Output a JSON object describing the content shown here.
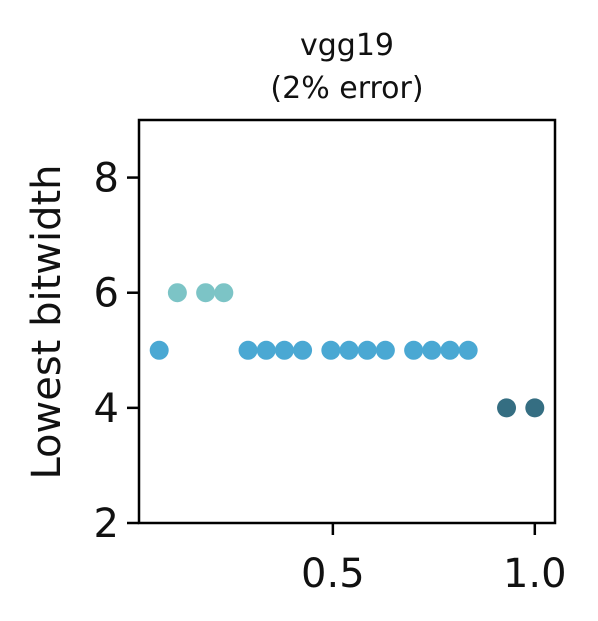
{
  "chart_data": {
    "type": "scatter",
    "title": "vgg19",
    "subtitle": "(2% error)",
    "xlabel": "",
    "ylabel": "Lowest bitwidth",
    "xlim": [
      0.02,
      1.05
    ],
    "ylim": [
      2,
      9
    ],
    "xticks": [
      0.5,
      1.0
    ],
    "xtick_labels": [
      "0.5",
      "1.0"
    ],
    "yticks": [
      2,
      4,
      6,
      8
    ],
    "ytick_labels": [
      "2",
      "4",
      "6",
      "8"
    ],
    "grid": false,
    "points": [
      {
        "x": 0.07,
        "y": 5,
        "color": "#4aa8d3"
      },
      {
        "x": 0.115,
        "y": 6,
        "color": "#7cc4c6"
      },
      {
        "x": 0.185,
        "y": 6,
        "color": "#7cc4c6"
      },
      {
        "x": 0.23,
        "y": 6,
        "color": "#7cc4c6"
      },
      {
        "x": 0.29,
        "y": 5,
        "color": "#4aa8d3"
      },
      {
        "x": 0.335,
        "y": 5,
        "color": "#4aa8d3"
      },
      {
        "x": 0.38,
        "y": 5,
        "color": "#4aa8d3"
      },
      {
        "x": 0.425,
        "y": 5,
        "color": "#4aa8d3"
      },
      {
        "x": 0.495,
        "y": 5,
        "color": "#4aa8d3"
      },
      {
        "x": 0.54,
        "y": 5,
        "color": "#4aa8d3"
      },
      {
        "x": 0.585,
        "y": 5,
        "color": "#4aa8d3"
      },
      {
        "x": 0.63,
        "y": 5,
        "color": "#4aa8d3"
      },
      {
        "x": 0.7,
        "y": 5,
        "color": "#4aa8d3"
      },
      {
        "x": 0.745,
        "y": 5,
        "color": "#4aa8d3"
      },
      {
        "x": 0.79,
        "y": 5,
        "color": "#4aa8d3"
      },
      {
        "x": 0.835,
        "y": 5,
        "color": "#4aa8d3"
      },
      {
        "x": 0.93,
        "y": 4,
        "color": "#356e82"
      },
      {
        "x": 1.0,
        "y": 4,
        "color": "#356e82"
      }
    ]
  }
}
